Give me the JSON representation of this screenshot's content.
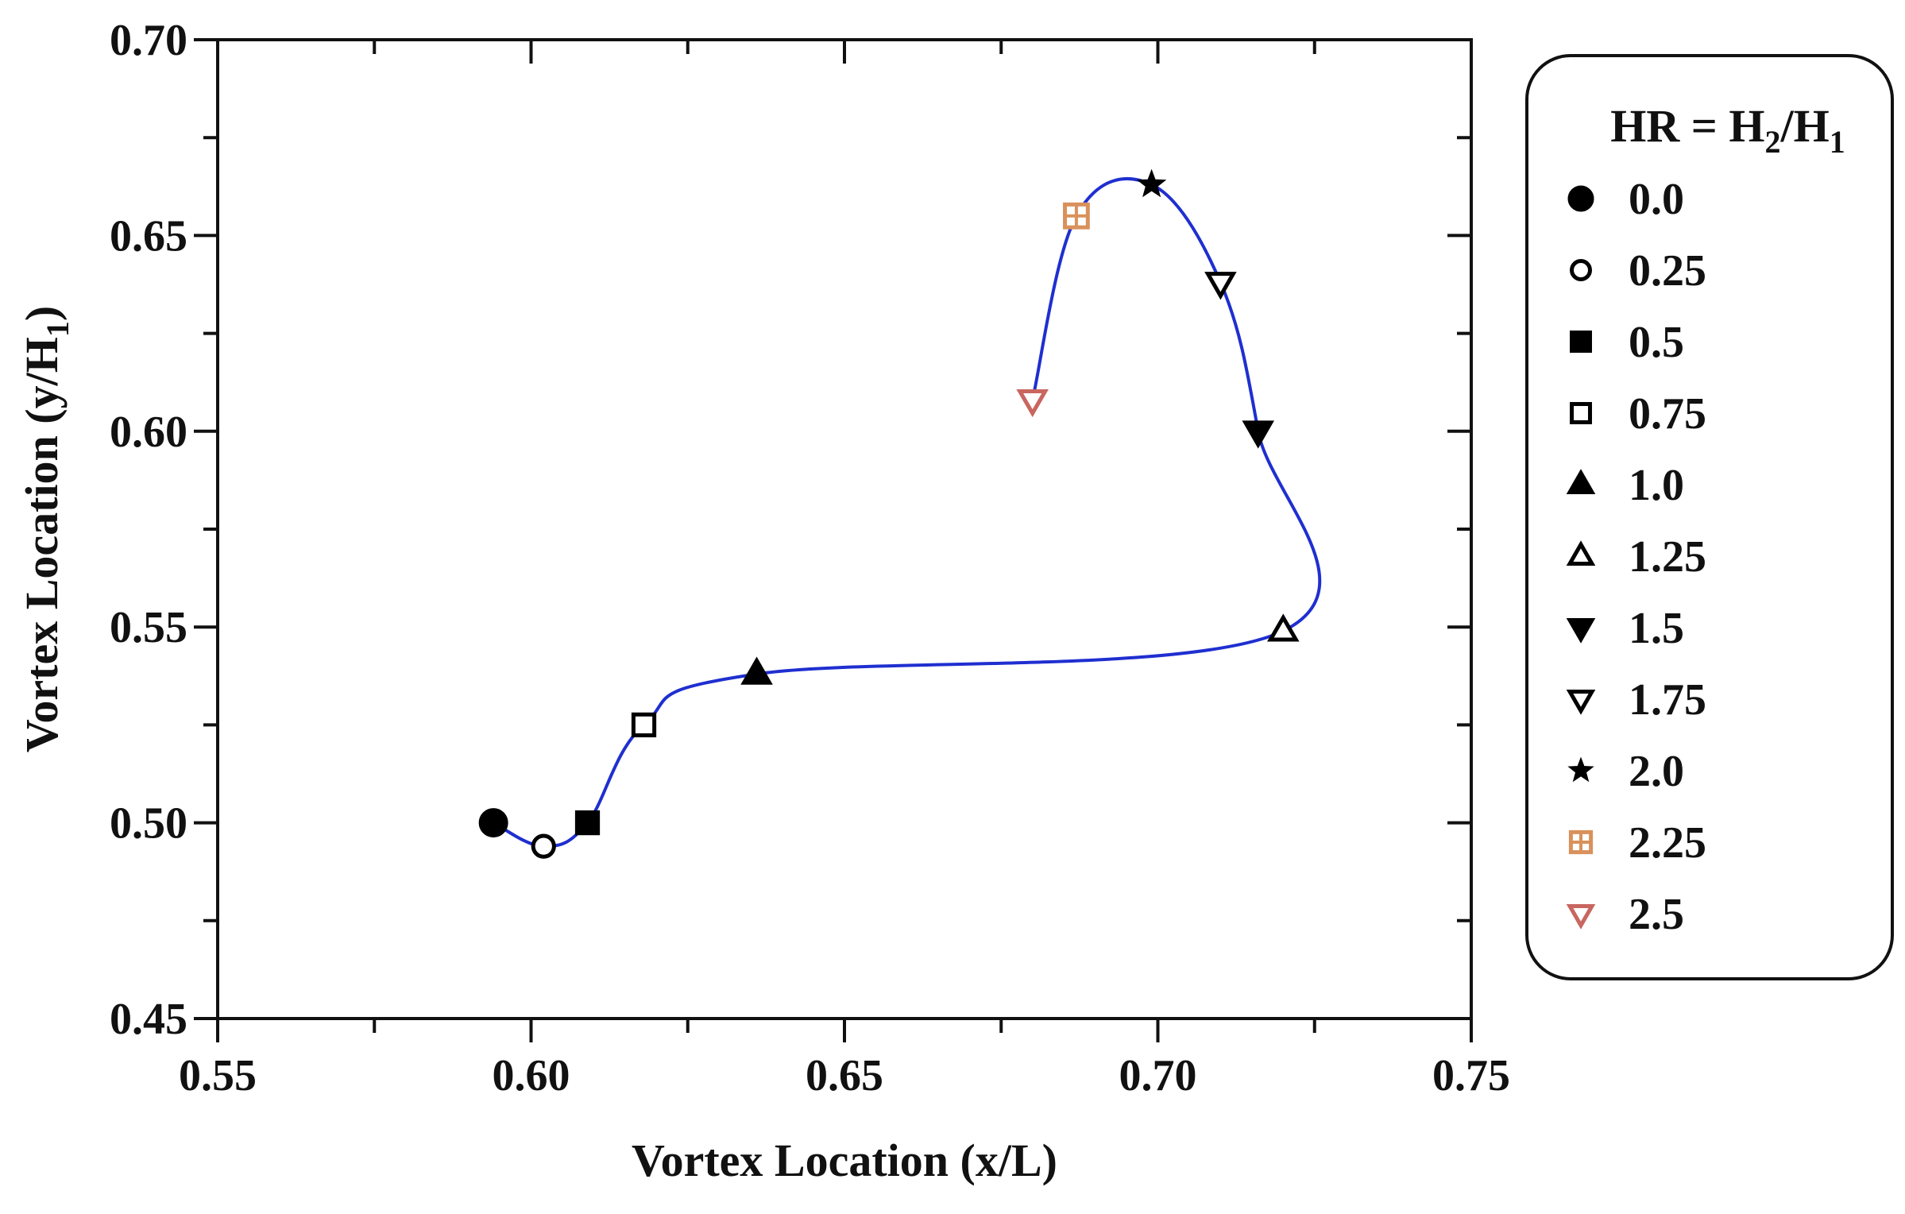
{
  "chart_data": {
    "type": "line",
    "xlabel": "Vortex Location (x/L)",
    "ylabel_main": "Vortex Location (y/H",
    "ylabel_sub": "1",
    "ylabel_close": ")",
    "xlim": [
      0.55,
      0.75
    ],
    "ylim": [
      0.45,
      0.7
    ],
    "x_ticks": [
      "0.55",
      "0.60",
      "0.65",
      "0.70",
      "0.75"
    ],
    "y_ticks": [
      "0.45",
      "0.50",
      "0.55",
      "0.60",
      "0.65",
      "0.70"
    ],
    "x_tick_values": [
      0.55,
      0.6,
      0.65,
      0.7,
      0.75
    ],
    "y_tick_values": [
      0.45,
      0.5,
      0.55,
      0.6,
      0.65,
      0.7
    ],
    "line_color": "#1f2fd0",
    "legend": {
      "title_main": "HR = H",
      "title_sub1": "2",
      "title_mid": "/H",
      "title_sub2": "1",
      "placement": "right"
    },
    "points": [
      {
        "label": "0.0",
        "x": 0.594,
        "y": 0.5,
        "marker": "circle-filled",
        "color": "#000000"
      },
      {
        "label": "0.25",
        "x": 0.602,
        "y": 0.494,
        "marker": "circle-open",
        "color": "#000000"
      },
      {
        "label": "0.5",
        "x": 0.609,
        "y": 0.5,
        "marker": "square-filled",
        "color": "#000000"
      },
      {
        "label": "0.75",
        "x": 0.618,
        "y": 0.525,
        "marker": "square-open",
        "color": "#000000"
      },
      {
        "label": "1.0",
        "x": 0.636,
        "y": 0.538,
        "marker": "triangle-up-filled",
        "color": "#000000"
      },
      {
        "label": "1.25",
        "x": 0.72,
        "y": 0.549,
        "marker": "triangle-up-open",
        "color": "#000000"
      },
      {
        "label": "1.5",
        "x": 0.716,
        "y": 0.6,
        "marker": "triangle-down-filled",
        "color": "#000000"
      },
      {
        "label": "1.75",
        "x": 0.71,
        "y": 0.638,
        "marker": "triangle-down-open",
        "color": "#000000"
      },
      {
        "label": "2.0",
        "x": 0.699,
        "y": 0.663,
        "marker": "star-filled",
        "color": "#000000"
      },
      {
        "label": "2.25",
        "x": 0.687,
        "y": 0.655,
        "marker": "square-plus-open",
        "color": "#d9915c"
      },
      {
        "label": "2.5",
        "x": 0.68,
        "y": 0.608,
        "marker": "triangle-down-open",
        "color": "#c8665f"
      }
    ]
  }
}
